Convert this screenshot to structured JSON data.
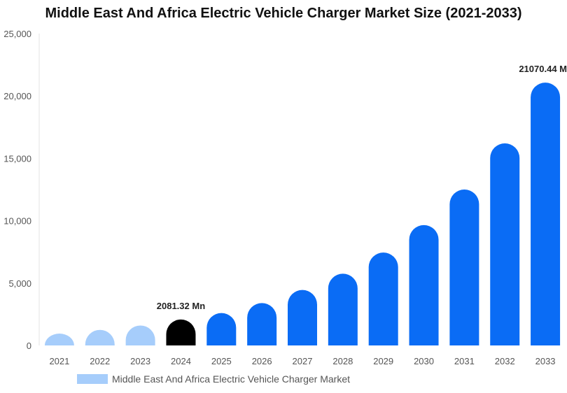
{
  "chart_data": {
    "type": "bar",
    "title": "Middle East And Africa Electric Vehicle Charger Market Size (2021-2033)",
    "xlabel": "",
    "ylabel": "",
    "ylim": [
      0,
      25000
    ],
    "yticks": [
      0,
      5000,
      10000,
      15000,
      20000,
      25000
    ],
    "ytick_labels": [
      "0",
      "5,000",
      "10,000",
      "15,000",
      "20,000",
      "25,000"
    ],
    "grid": false,
    "legend_position": "bottom",
    "categories": [
      "2021",
      "2022",
      "2023",
      "2024",
      "2025",
      "2026",
      "2027",
      "2028",
      "2029",
      "2030",
      "2031",
      "2032",
      "2033"
    ],
    "series": [
      {
        "name": "Middle East And Africa Electric Vehicle Charger Market",
        "values": [
          950,
          1250,
          1600,
          2081.32,
          2600,
          3400,
          4450,
          5750,
          7450,
          9650,
          12500,
          16200,
          21070.44
        ]
      }
    ],
    "bar_colors": [
      "#a6cdfb",
      "#a6cdfb",
      "#a6cdfb",
      "#000000",
      "#0a6cf5",
      "#0a6cf5",
      "#0a6cf5",
      "#0a6cf5",
      "#0a6cf5",
      "#0a6cf5",
      "#0a6cf5",
      "#0a6cf5",
      "#0a6cf5"
    ],
    "annotations": [
      {
        "category": "2024",
        "text": "2081.32 Mn"
      },
      {
        "category": "2033",
        "text": "21070.44 M"
      }
    ],
    "legend_color": "#a6cdfb"
  }
}
